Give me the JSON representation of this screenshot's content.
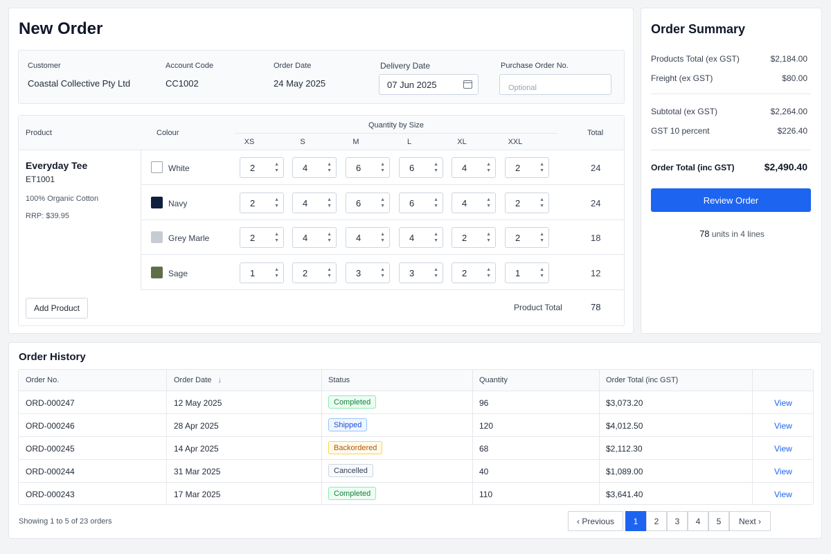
{
  "order": {
    "title": "New Order",
    "fields": {
      "customer": {
        "label": "Customer",
        "value": "Coastal Collective Pty Ltd"
      },
      "account_code": {
        "label": "Account Code",
        "value": "CC1002"
      },
      "order_date": {
        "label": "Order Date",
        "value": "24 May 2025"
      },
      "delivery_date": {
        "label": "Delivery Date",
        "value": "07 Jun 2025"
      },
      "po_number": {
        "label": "Purchase Order No.",
        "placeholder": "Optional"
      }
    },
    "table": {
      "headers": {
        "product": "Product",
        "colour": "Colour",
        "qty_by_size": "Quantity by Size",
        "total": "Total"
      },
      "sizes": [
        "XS",
        "S",
        "M",
        "L",
        "XL",
        "XXL"
      ],
      "product": {
        "name": "Everyday Tee",
        "code": "ET1001",
        "material": "100% Organic Cotton",
        "rrp": "RRP: $39.95"
      },
      "rows": [
        {
          "colour": "White",
          "swatch": "#ffffff",
          "qty": [
            "2",
            "4",
            "6",
            "6",
            "4",
            "2"
          ],
          "total": "24"
        },
        {
          "colour": "Navy",
          "swatch": "#0f1f3d",
          "qty": [
            "2",
            "4",
            "6",
            "6",
            "4",
            "2"
          ],
          "total": "24"
        },
        {
          "colour": "Grey Marle",
          "swatch": "#c7cbd3",
          "qty": [
            "2",
            "4",
            "4",
            "4",
            "2",
            "2"
          ],
          "total": "18"
        },
        {
          "colour": "Sage",
          "swatch": "#5f6e48",
          "qty": [
            "1",
            "2",
            "3",
            "3",
            "2",
            "1"
          ],
          "total": "12"
        }
      ],
      "add_product": "Add Product",
      "product_total_label": "Product Total",
      "product_total": "78"
    }
  },
  "summary": {
    "title": "Order Summary",
    "products_total_label": "Products Total (ex GST)",
    "products_total": "$2,184.00",
    "freight_label": "Freight (ex GST)",
    "freight": "$80.00",
    "subtotal_label": "Subtotal (ex GST)",
    "subtotal": "$2,264.00",
    "gst_label": "GST 10 percent",
    "gst": "$226.40",
    "order_total_label": "Order Total (inc GST)",
    "order_total": "$2,490.40",
    "review_button": "Review Order",
    "units_count": "78",
    "units_text": "units in 4 lines"
  },
  "history": {
    "title": "Order History",
    "headers": [
      "Order No.",
      "Order Date",
      "Status",
      "Quantity",
      "Order Total (inc GST)"
    ],
    "sort_icon": "arrow-down-icon",
    "rows": [
      {
        "order_no": "ORD-000247",
        "date": "12 May 2025",
        "status": "Completed",
        "qty": "96",
        "total": "$3,073.20",
        "action": "View"
      },
      {
        "order_no": "ORD-000246",
        "date": "28 Apr 2025",
        "status": "Shipped",
        "qty": "120",
        "total": "$4,012.50",
        "action": "View"
      },
      {
        "order_no": "ORD-000245",
        "date": "14 Apr 2025",
        "status": "Backordered",
        "qty": "68",
        "total": "$2,112.30",
        "action": "View"
      },
      {
        "order_no": "ORD-000244",
        "date": "31 Mar 2025",
        "status": "Cancelled",
        "qty": "40",
        "total": "$1,089.00",
        "action": "View"
      },
      {
        "order_no": "ORD-000243",
        "date": "17 Mar 2025",
        "status": "Completed",
        "qty": "110",
        "total": "$3,641.40",
        "action": "View"
      }
    ],
    "showing": "Showing 1 to 5 of 23 orders",
    "pagination": {
      "previous": "Previous",
      "next": "Next",
      "pages": [
        "1",
        "2",
        "3",
        "4",
        "5"
      ],
      "current": "1"
    }
  },
  "colors": {
    "accent": "#1d64f0",
    "status": {
      "Completed": {
        "bg": "#ecfdf3",
        "border": "#86efac",
        "text": "#15803d"
      },
      "Shipped": {
        "bg": "#eff6ff",
        "border": "#93c5fd",
        "text": "#1d4ed8"
      },
      "Backordered": {
        "bg": "#fffbeb",
        "border": "#fcd34d",
        "text": "#b45309"
      },
      "Cancelled": {
        "bg": "#f8fafc",
        "border": "#cbd5e1",
        "text": "#334155"
      }
    }
  }
}
